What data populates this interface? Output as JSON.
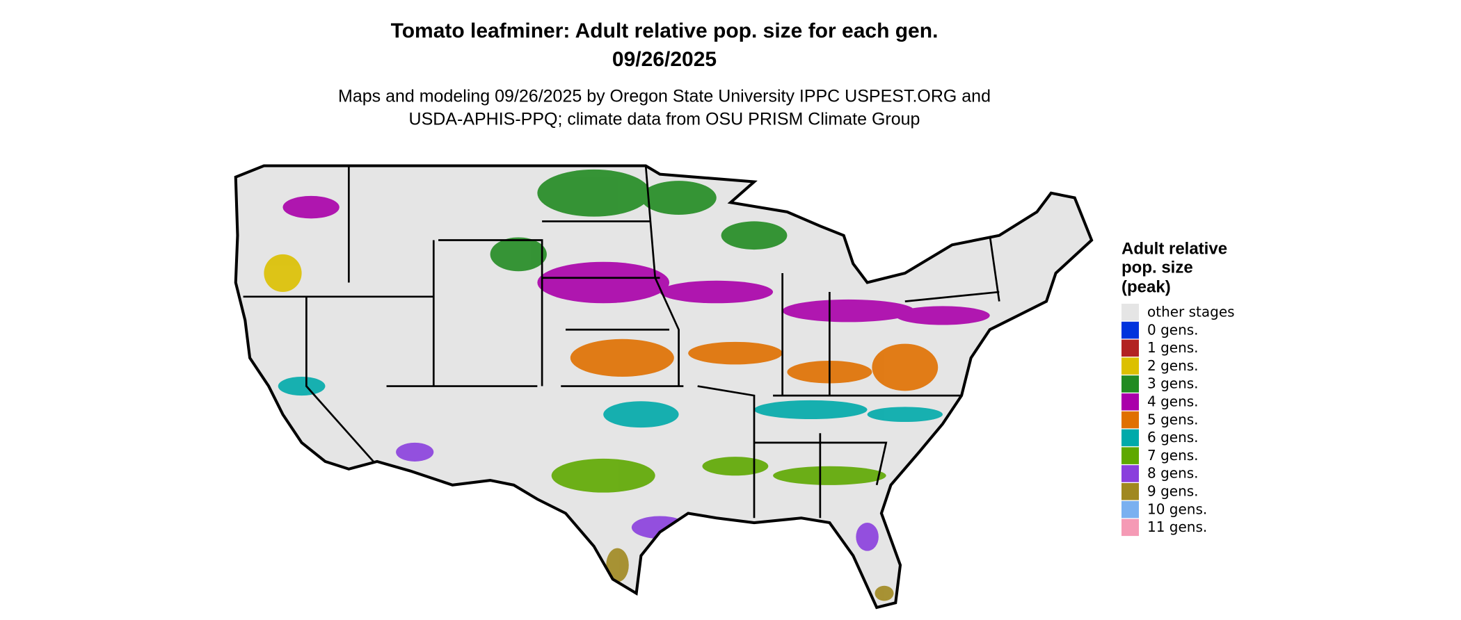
{
  "title": [
    "Tomato leafminer: Adult relative pop. size for each gen.",
    "09/26/2025"
  ],
  "subtitle": [
    "Maps and modeling 09/26/2025 by Oregon State University IPPC USPEST.ORG and",
    "USDA-APHIS-PPQ; climate data from OSU PRISM Climate Group"
  ],
  "legend": {
    "title": [
      "Adult relative",
      "pop. size",
      "(peak)"
    ],
    "items": [
      {
        "label": "other stages",
        "color": "#e5e5e5"
      },
      {
        "label": "0 gens.",
        "color": "#0033dd"
      },
      {
        "label": "1 gens.",
        "color": "#b22222"
      },
      {
        "label": "2 gens.",
        "color": "#dcc000"
      },
      {
        "label": "3 gens.",
        "color": "#228b22"
      },
      {
        "label": "4 gens.",
        "color": "#aa00aa"
      },
      {
        "label": "5 gens.",
        "color": "#e07000"
      },
      {
        "label": "6 gens.",
        "color": "#00aaaa"
      },
      {
        "label": "7 gens.",
        "color": "#5ea800"
      },
      {
        "label": "8 gens.",
        "color": "#8a3fdd"
      },
      {
        "label": "9 gens.",
        "color": "#a08820"
      },
      {
        "label": "10 gens.",
        "color": "#7ab0f0"
      },
      {
        "label": "11 gens.",
        "color": "#f59ab5"
      }
    ]
  }
}
